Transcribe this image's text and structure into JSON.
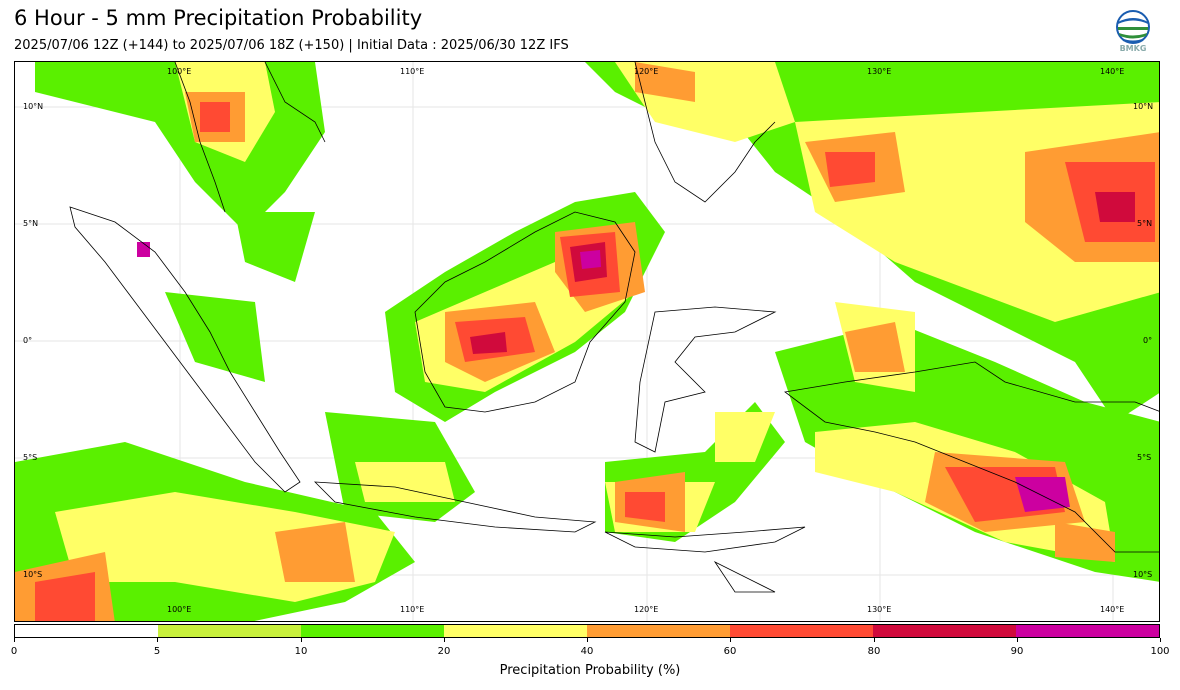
{
  "header": {
    "title": "6 Hour - 5 mm Precipitation Probability",
    "subtitle": "2025/07/06 12Z (+144) to 2025/07/06 18Z (+150) | Initial Data : 2025/06/30 12Z IFS"
  },
  "logo": {
    "text": "BMKG",
    "icon": "bmkg-logo-icon"
  },
  "map": {
    "lon_top": [
      "100°E",
      "110°E",
      "120°E",
      "130°E",
      "140°E"
    ],
    "lon_bottom": [
      "100°E",
      "110°E",
      "120°E",
      "130°E",
      "140°E"
    ],
    "lat_left": [
      "10°N",
      "5°N",
      "0°",
      "5°S",
      "10°S"
    ],
    "lat_right": [
      "10°N",
      "5°N",
      "0°",
      "5°S",
      "10°S"
    ]
  },
  "colorbar": {
    "label": "Precipitation Probability (%)",
    "ticks": [
      "0",
      "5",
      "10",
      "20",
      "40",
      "60",
      "80",
      "90",
      "100"
    ],
    "colors": [
      "#ffffff",
      "#c8f03c",
      "#5af000",
      "#ffff66",
      "#ff9c33",
      "#ff4a33",
      "#d00a3c",
      "#cc00a0"
    ]
  }
}
